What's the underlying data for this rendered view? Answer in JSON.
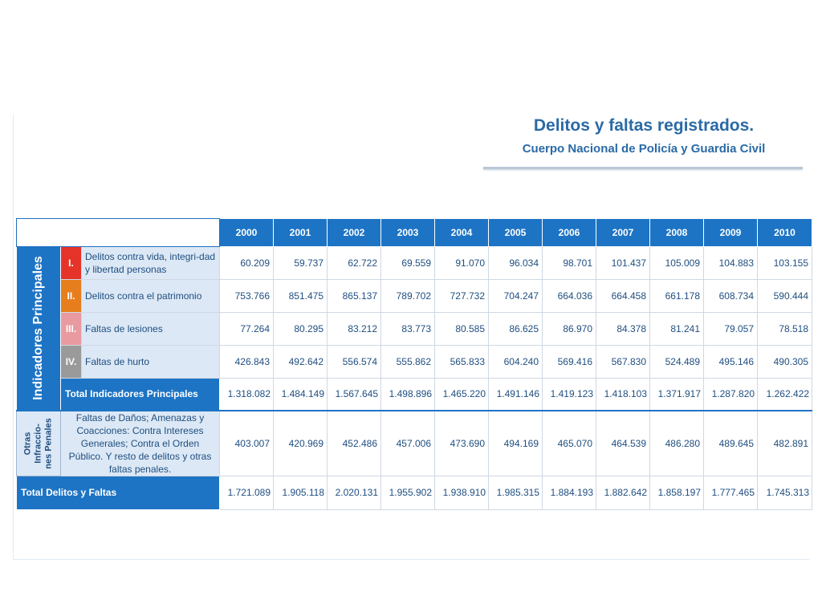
{
  "title": "Delitos y faltas registrados.",
  "subtitle": "Cuerpo Nacional de Policía y Guardia Civil",
  "years": [
    "2000",
    "2001",
    "2002",
    "2003",
    "2004",
    "2005",
    "2006",
    "2007",
    "2008",
    "2009",
    "2010"
  ],
  "group1_label": "Indicadores Principales",
  "group2_label_lines": [
    "Otras",
    "Infraccio-",
    "nes Penales"
  ],
  "rows": [
    {
      "num": "I.",
      "label": "Delitos contra vida, integri-dad y libertad personas",
      "values": [
        "60.209",
        "59.737",
        "62.722",
        "69.559",
        "91.070",
        "96.034",
        "98.701",
        "101.437",
        "105.009",
        "104.883",
        "103.155"
      ]
    },
    {
      "num": "II.",
      "label": "Delitos contra el patrimonio",
      "values": [
        "753.766",
        "851.475",
        "865.137",
        "789.702",
        "727.732",
        "704.247",
        "664.036",
        "664.458",
        "661.178",
        "608.734",
        "590.444"
      ]
    },
    {
      "num": "III.",
      "label": "Faltas de lesiones",
      "values": [
        "77.264",
        "80.295",
        "83.212",
        "83.773",
        "80.585",
        "86.625",
        "86.970",
        "84.378",
        "81.241",
        "79.057",
        "78.518"
      ]
    },
    {
      "num": "IV.",
      "label": "Faltas de hurto",
      "values": [
        "426.843",
        "492.642",
        "556.574",
        "555.862",
        "565.833",
        "604.240",
        "569.416",
        "567.830",
        "524.489",
        "495.146",
        "490.305"
      ]
    }
  ],
  "total_principales": {
    "label": "Total Indicadores Principales",
    "values": [
      "1.318.082",
      "1.484.149",
      "1.567.645",
      "1.498.896",
      "1.465.220",
      "1.491.146",
      "1.419.123",
      "1.418.103",
      "1.371.917",
      "1.287.820",
      "1.262.422"
    ]
  },
  "otras": {
    "label": "Faltas de Daños; Amenazas y Coacciones: Contra Intereses Generales; Contra el Orden Público. Y resto de delitos y otras faltas penales.",
    "values": [
      "403.007",
      "420.969",
      "452.486",
      "457.006",
      "473.690",
      "494.169",
      "465.070",
      "464.539",
      "486.280",
      "489.645",
      "482.891"
    ]
  },
  "total_delitos": {
    "label": "Total Delitos y Faltas",
    "values": [
      "1.721.089",
      "1.905.118",
      "2.020.131",
      "1.955.902",
      "1.938.910",
      "1.985.315",
      "1.884.193",
      "1.882.642",
      "1.858.197",
      "1.777.465",
      "1.745.313"
    ]
  },
  "colors": {
    "header_blue": "#1e74c4",
    "label_bg": "#dce8f5",
    "row1": "#e63329",
    "row2": "#e67e1e",
    "row3": "#e89aa0",
    "row4": "#9a9a9a",
    "title": "#2a6aa6"
  }
}
